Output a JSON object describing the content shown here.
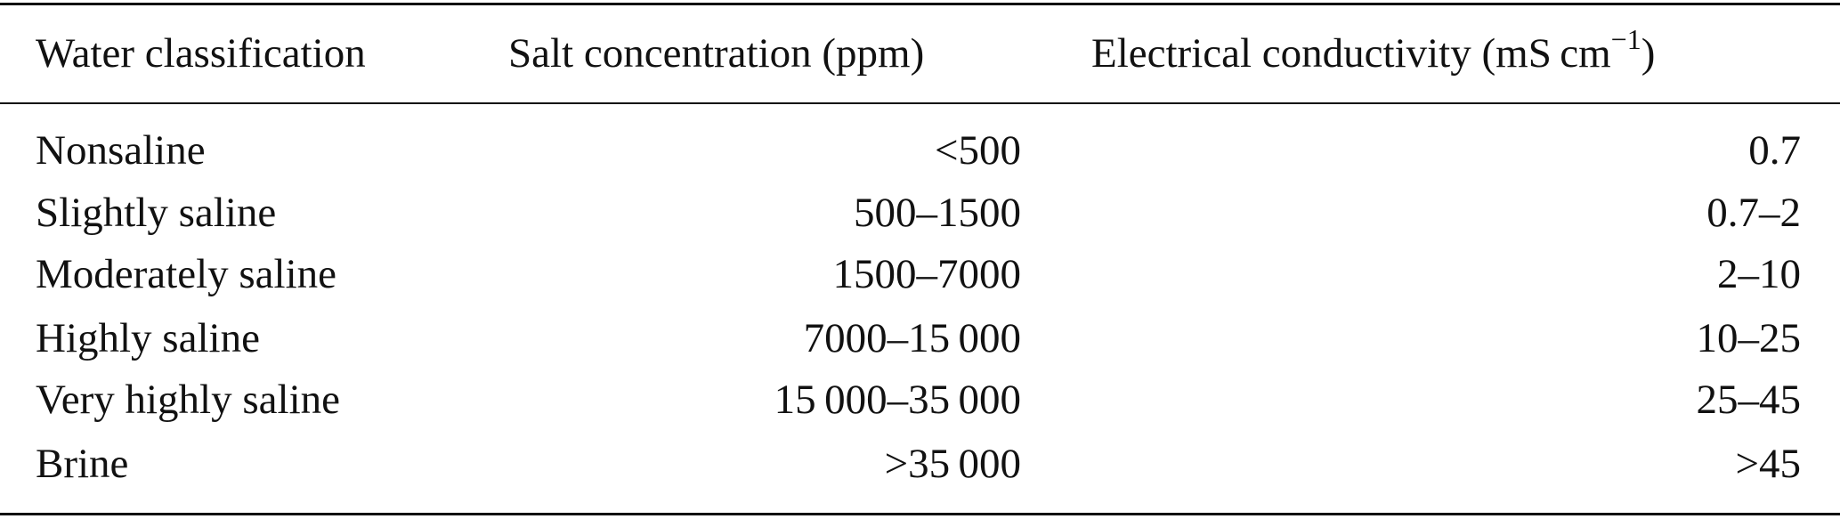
{
  "table": {
    "header": [
      "Water classification",
      "Salt concentration (ppm)",
      {
        "text": "Electrical conductivity (mS cm",
        "superscript": "−1",
        "suffix": ")"
      }
    ],
    "rows": [
      [
        "Nonsaline",
        "<500",
        "0.7"
      ],
      [
        "Slightly saline",
        "500–1500",
        "0.7–2"
      ],
      [
        "Moderately saline",
        "1500–7000",
        "2–10"
      ],
      [
        "Highly saline",
        "7000–15 000",
        "10–25"
      ],
      [
        "Very highly saline",
        "15 000–35 000",
        "25–45"
      ],
      [
        "Brine",
        ">35 000",
        ">45"
      ]
    ]
  }
}
